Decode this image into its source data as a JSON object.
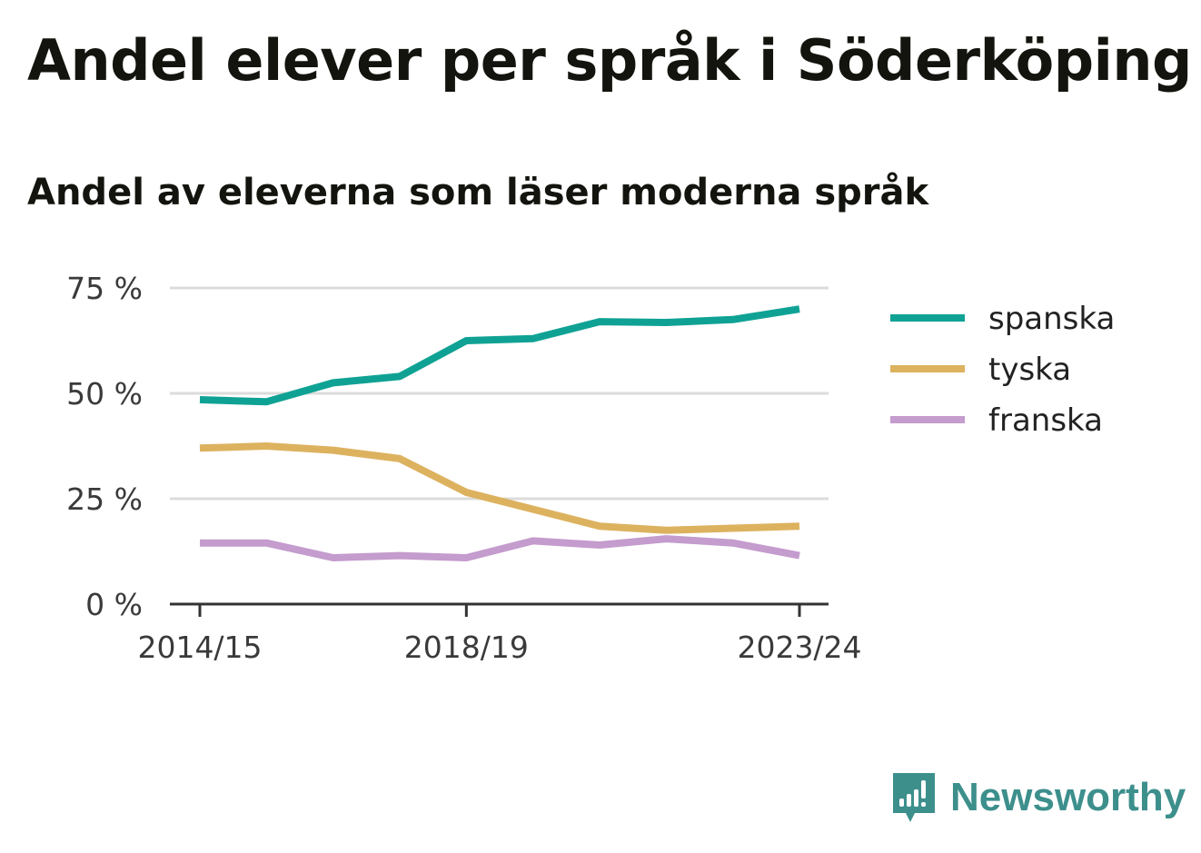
{
  "title": "Andel elever per språk i Söderköping",
  "subtitle": "Andel av eleverna som läser moderna språk",
  "brand": {
    "name": "Newsworthy",
    "color": "#3d8f8c"
  },
  "chart_data": {
    "type": "line",
    "x": [
      "2014/15",
      "2015/16",
      "2016/17",
      "2017/18",
      "2018/19",
      "2019/20",
      "2020/21",
      "2021/22",
      "2022/23",
      "2023/24"
    ],
    "x_tick_labels": [
      "2014/15",
      "2018/19",
      "2023/24"
    ],
    "y_tick_labels": [
      "0 %",
      "25 %",
      "50 %",
      "75 %"
    ],
    "y_ticks": [
      0,
      25,
      50,
      75
    ],
    "ylim": [
      0,
      75
    ],
    "grid": true,
    "legend": "right",
    "series": [
      {
        "name": "spanska",
        "color": "#0fa294",
        "values": [
          48.5,
          48,
          52.5,
          54,
          62.5,
          63,
          67,
          66.8,
          67.5,
          70
        ]
      },
      {
        "name": "tyska",
        "color": "#ddb25f",
        "values": [
          37,
          37.5,
          36.5,
          34.5,
          26.5,
          22.5,
          18.5,
          17.5,
          18,
          18.5
        ]
      },
      {
        "name": "franska",
        "color": "#c49ccd",
        "values": [
          14.5,
          14.5,
          11,
          11.5,
          11,
          15,
          14,
          15.5,
          14.5,
          11.5
        ]
      }
    ]
  }
}
